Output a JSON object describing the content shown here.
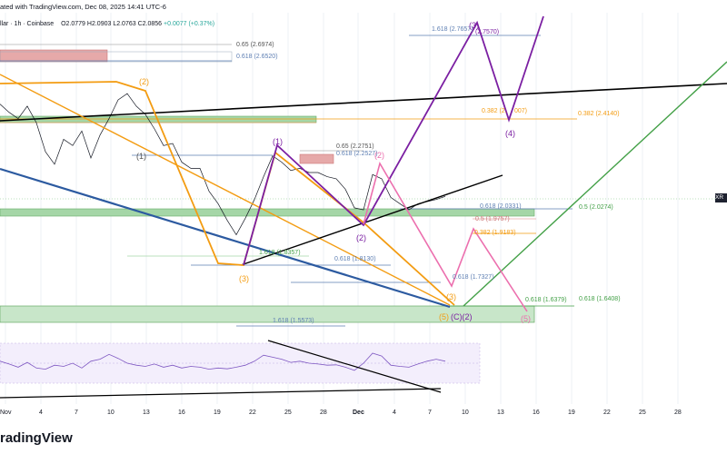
{
  "header": {
    "published": "ated with TradingView.com, Dec 08, 2025 14:41 UTC-6",
    "symbol": "llar · 1h · Coinbase",
    "ohlc_o": "O2.0779",
    "ohlc_h": "H2.0903",
    "ohlc_l": "L2.0763",
    "ohlc_c": "C2.0856",
    "change": "+0.0077 (+0.37%)"
  },
  "price_tag": "XR",
  "logo_text": "radingView",
  "colors": {
    "orange": "#f39c12",
    "purple": "#7b1fa2",
    "pink": "#ec6fae",
    "green": "#43a047",
    "blue": "#2c5aa0",
    "black": "#000000",
    "rsi": "#7e57c2",
    "candle_up": "#26a69a",
    "candle_down": "#ef5350"
  },
  "fib_labels": {
    "f1": "1.618 (2.7657)",
    "f2": "(2.7570)",
    "f3": "0.65 (2.6974)",
    "f4": "0.618 (2.6520)",
    "f5": "0.65 (2.2751)",
    "f6": "0.618 (2.2527)",
    "f7": "0.382 (2.4140)",
    "f8": "0.382 (2.",
    "f9": "007)",
    "f10": "0.618 (2.0331)",
    "f11": "0.5 (2.0274)",
    "f12": "0.5 (1.9757)",
    "f13": "0.382 (1.9183)",
    "f14": "1.618 (1.8357)",
    "f15": "0.618 (1.8130)",
    "f16": "0.618 (1.7327)",
    "f17": "0.618 (1.6379)",
    "f18": "0.618 (1.6408)",
    "f19": "1.618 (1.5573)"
  },
  "waves": {
    "orange_2": "(2)",
    "orange_3": "(3)",
    "purple_1": "(1)",
    "purple_3": "(3)",
    "purple_4": "(4)",
    "purple_2": "(2)",
    "pink_2": "(2)",
    "pink_5": "(5)",
    "small_1": "(1)",
    "c3": "(3)",
    "c5": "(5)",
    "c_ci2": "(C)(2)"
  },
  "chart_data": {
    "type": "line",
    "title": "",
    "x_ticks": [
      "Nov",
      "4",
      "7",
      "10",
      "13",
      "16",
      "19",
      "22",
      "25",
      "28",
      "Dec",
      "4",
      "7",
      "10",
      "13",
      "16",
      "19",
      "22",
      "25",
      "28"
    ],
    "price_series": {
      "name": "",
      "x": [
        0,
        10,
        20,
        30,
        40,
        50,
        60,
        70,
        80,
        90,
        100,
        110,
        120,
        130,
        140,
        150,
        160,
        170,
        180,
        190,
        200,
        210,
        220,
        230,
        240,
        250,
        260,
        270,
        280,
        290,
        300,
        310,
        320,
        330,
        340,
        350,
        360,
        370,
        380,
        390,
        400,
        410,
        420,
        430,
        440,
        450,
        460,
        470,
        480,
        490
      ],
      "y": [
        2.53,
        2.49,
        2.46,
        2.52,
        2.44,
        2.3,
        2.24,
        2.36,
        2.33,
        2.4,
        2.27,
        2.38,
        2.46,
        2.55,
        2.58,
        2.52,
        2.48,
        2.41,
        2.33,
        2.34,
        2.25,
        2.22,
        2.22,
        2.11,
        2.05,
        1.97,
        1.9,
        1.98,
        2.07,
        2.18,
        2.28,
        2.25,
        2.21,
        2.22,
        2.2,
        2.2,
        2.18,
        2.17,
        2.12,
        2.03,
        2.02,
        2.19,
        2.17,
        2.08,
        2.05,
        2.02,
        2.05,
        2.06,
        2.07,
        2.085
      ]
    },
    "rsi_series": {
      "name": "",
      "x": [
        0,
        10,
        20,
        30,
        40,
        50,
        60,
        70,
        80,
        90,
        100,
        110,
        120,
        130,
        140,
        150,
        160,
        170,
        180,
        190,
        200,
        210,
        220,
        230,
        240,
        250,
        260,
        270,
        280,
        290,
        300,
        310,
        320,
        330,
        340,
        350,
        360,
        370,
        380,
        390,
        400,
        410,
        420,
        430,
        440,
        450,
        460,
        470,
        480,
        490
      ],
      "y": [
        55,
        48,
        40,
        52,
        38,
        35,
        45,
        42,
        50,
        38,
        55,
        60,
        72,
        62,
        50,
        45,
        42,
        48,
        40,
        45,
        38,
        42,
        40,
        35,
        38,
        36,
        40,
        45,
        55,
        70,
        65,
        60,
        52,
        55,
        50,
        48,
        45,
        46,
        40,
        32,
        50,
        75,
        68,
        45,
        42,
        40,
        48,
        55,
        60,
        55
      ]
    },
    "ylim": [
      1.5,
      2.9
    ],
    "rsi_ylim": [
      0,
      100
    ],
    "grid": true
  }
}
